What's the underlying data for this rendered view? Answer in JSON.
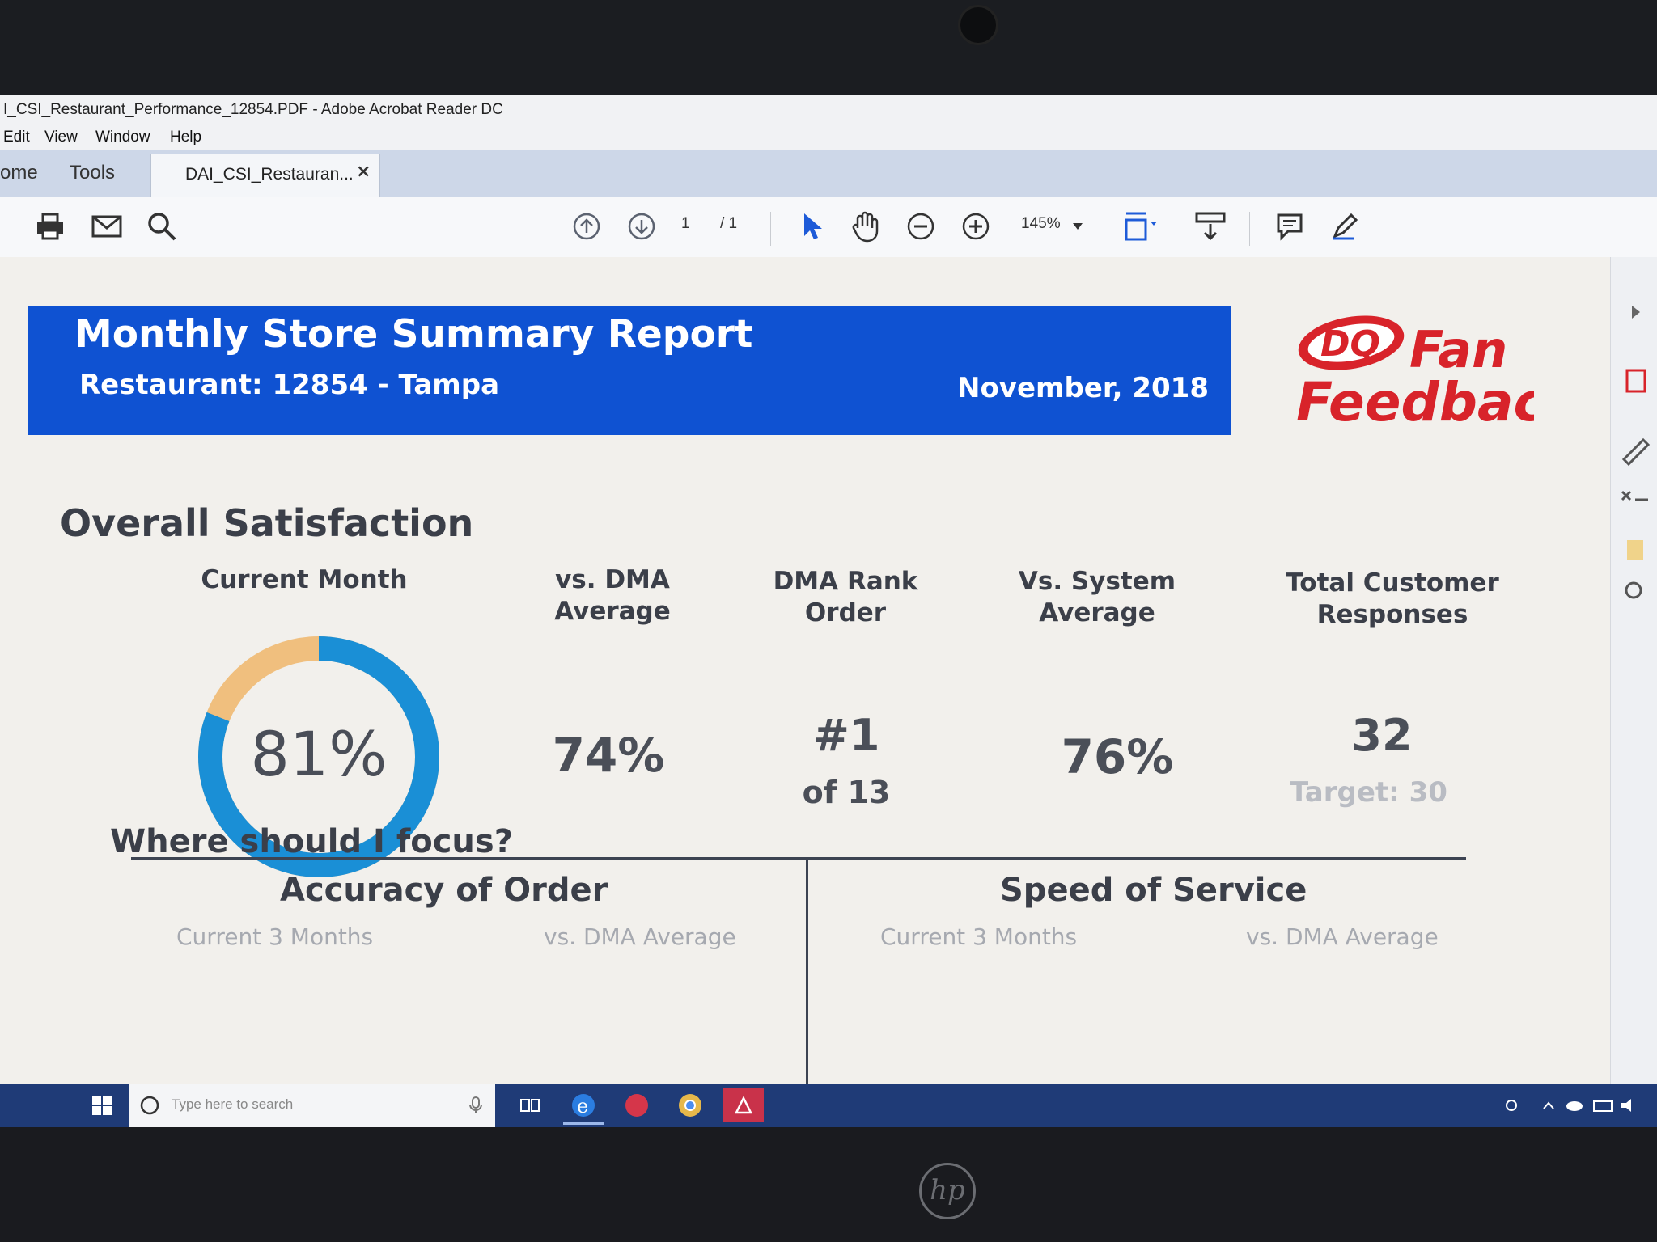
{
  "window": {
    "title": "I_CSI_Restaurant_Performance_12854.PDF - Adobe Acrobat Reader DC"
  },
  "menu": [
    "Edit",
    "View",
    "Window",
    "Help"
  ],
  "tabs": {
    "home": "ome",
    "tools": "Tools",
    "document": "DAI_CSI_Restauran...",
    "close": "×"
  },
  "toolbar": {
    "page_current": "1",
    "page_total": "/ 1",
    "zoom": "145%"
  },
  "report": {
    "title": "Monthly Store Summary Report",
    "restaurant": "Restaurant: 12854 - Tampa",
    "date": "November, 2018",
    "logo_text_1": "DQ",
    "logo_text_2": "Fan",
    "logo_text_3": "Feedback",
    "section_title": "Overall Satisfaction",
    "columns": {
      "current_month": "Current Month",
      "vs_dma_1": "vs. DMA",
      "vs_dma_2": "Average",
      "dma_rank_1": "DMA Rank",
      "dma_rank_2": "Order",
      "vs_system_1": "Vs. System",
      "vs_system_2": "Average",
      "total_responses_1": "Total Customer",
      "total_responses_2": "Responses"
    },
    "metrics": {
      "current_month": "81%",
      "current_month_fraction": 0.81,
      "vs_dma": "74%",
      "dma_rank": "#1",
      "dma_rank_of": "of 13",
      "vs_system": "76%",
      "total_responses": "32",
      "target": "Target: 30"
    },
    "focus": {
      "title": "Where should I focus?",
      "left_head": "Accuracy of Order",
      "right_head": "Speed of Service",
      "left_sub_1": "Current 3 Months",
      "left_sub_2": "vs. DMA Average",
      "right_sub_1": "Current 3 Months",
      "right_sub_2": "vs. DMA Average"
    }
  },
  "taskbar": {
    "search_placeholder": "Type here to search"
  },
  "colors": {
    "banner_blue": "#0f52d2",
    "donut_blue": "#1a8fd6",
    "donut_remainder": "#f0bf7e",
    "logo_red": "#d8232a"
  }
}
